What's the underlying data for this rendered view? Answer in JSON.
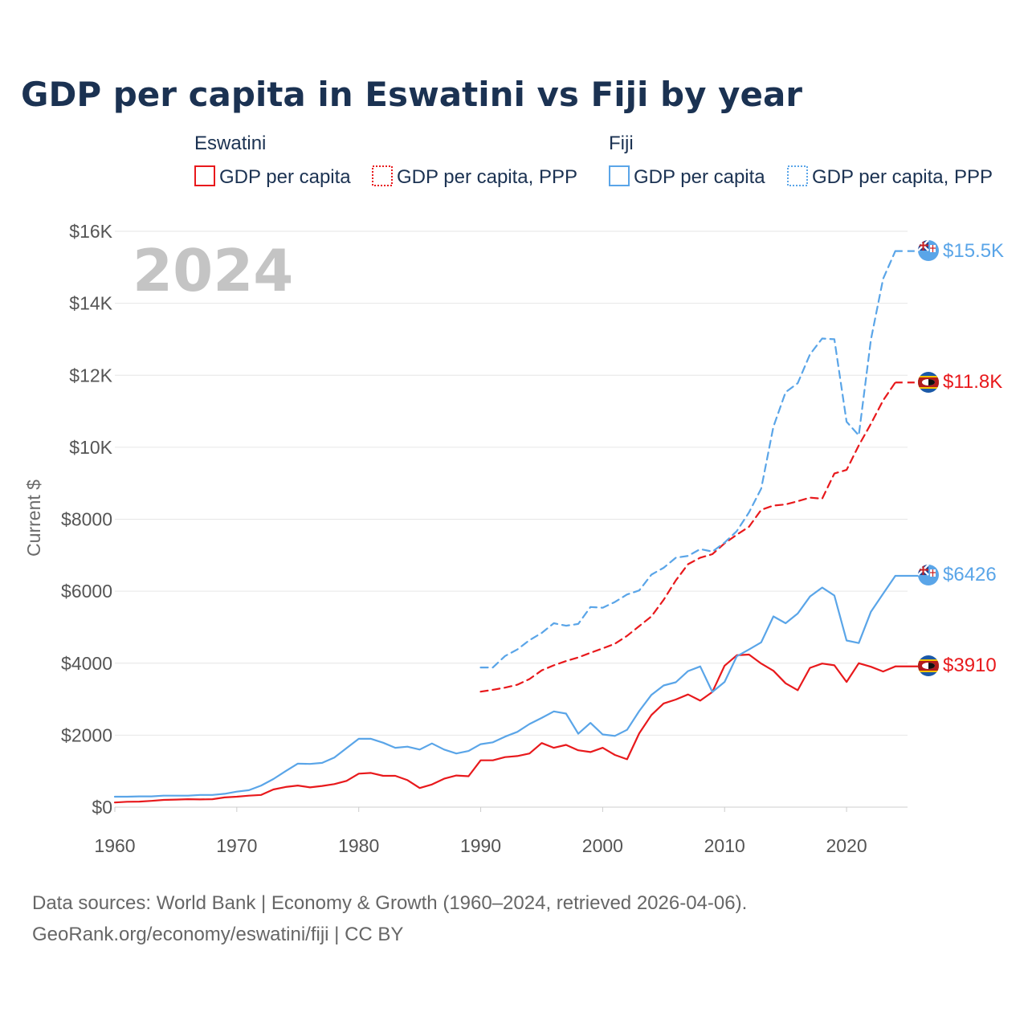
{
  "chart_data": {
    "type": "line",
    "title": "GDP per capita in Eswatini vs Fiji by year",
    "ylabel": "Current $",
    "xlim": [
      1960,
      2025
    ],
    "ylim": [
      0,
      16000
    ],
    "x_ticks": [
      1960,
      1970,
      1980,
      1990,
      2000,
      2010,
      2020
    ],
    "x_tick_labels": [
      "1960",
      "1970",
      "1980",
      "1990",
      "2000",
      "2010",
      "2020"
    ],
    "y_ticks": [
      0,
      2000,
      4000,
      6000,
      8000,
      10000,
      12000,
      14000,
      16000
    ],
    "y_tick_labels": [
      "$0",
      "$2000",
      "$4000",
      "$6000",
      "$8000",
      "$10K",
      "$12K",
      "$14K",
      "$16K"
    ],
    "year_watermark": "2024",
    "legend": {
      "groups": [
        {
          "title": "Eswatini",
          "color": "#e8191c",
          "items": [
            {
              "label": "GDP per capita",
              "style": "solid"
            },
            {
              "label": "GDP per capita, PPP",
              "style": "dotted"
            }
          ]
        },
        {
          "title": "Fiji",
          "color": "#5aa5e8",
          "items": [
            {
              "label": "GDP per capita",
              "style": "solid"
            },
            {
              "label": "GDP per capita, PPP",
              "style": "dotted"
            }
          ]
        }
      ]
    },
    "series": [
      {
        "name": "Eswatini GDP per capita",
        "country": "Eswatini",
        "color": "#e8191c",
        "dash": "solid",
        "end_label": "$3910",
        "x": [
          1960,
          1961,
          1962,
          1963,
          1964,
          1965,
          1966,
          1967,
          1968,
          1969,
          1970,
          1971,
          1972,
          1973,
          1974,
          1975,
          1976,
          1977,
          1978,
          1979,
          1980,
          1981,
          1982,
          1983,
          1984,
          1985,
          1986,
          1987,
          1988,
          1989,
          1990,
          1991,
          1992,
          1993,
          1994,
          1995,
          1996,
          1997,
          1998,
          1999,
          2000,
          2001,
          2002,
          2003,
          2004,
          2005,
          2006,
          2007,
          2008,
          2009,
          2010,
          2011,
          2012,
          2013,
          2014,
          2015,
          2016,
          2017,
          2018,
          2019,
          2020,
          2021,
          2022,
          2023,
          2024
        ],
        "values": [
          130,
          150,
          155,
          175,
          200,
          210,
          220,
          215,
          220,
          270,
          290,
          320,
          340,
          490,
          560,
          600,
          550,
          590,
          640,
          730,
          930,
          950,
          870,
          870,
          750,
          530,
          630,
          790,
          880,
          860,
          1300,
          1300,
          1390,
          1420,
          1490,
          1780,
          1650,
          1730,
          1580,
          1530,
          1650,
          1450,
          1330,
          2050,
          2560,
          2880,
          2990,
          3130,
          2960,
          3200,
          3930,
          4220,
          4240,
          3990,
          3790,
          3440,
          3250,
          3870,
          3990,
          3940,
          3480,
          4000,
          3900,
          3770,
          3910
        ]
      },
      {
        "name": "Eswatini GDP per capita, PPP",
        "country": "Eswatini",
        "color": "#e8191c",
        "dash": "dashed",
        "end_label": "$11.8K",
        "x": [
          1990,
          1991,
          1992,
          1993,
          1994,
          1995,
          1996,
          1997,
          1998,
          1999,
          2000,
          2001,
          2002,
          2003,
          2004,
          2005,
          2006,
          2007,
          2008,
          2009,
          2010,
          2011,
          2012,
          2013,
          2014,
          2015,
          2016,
          2017,
          2018,
          2019,
          2020,
          2021,
          2022,
          2023,
          2024
        ],
        "values": [
          3210,
          3260,
          3320,
          3400,
          3560,
          3800,
          3940,
          4060,
          4160,
          4290,
          4410,
          4540,
          4760,
          5030,
          5300,
          5760,
          6300,
          6750,
          6930,
          7030,
          7330,
          7570,
          7790,
          8260,
          8380,
          8410,
          8500,
          8600,
          8570,
          9270,
          9370,
          10050,
          10650,
          11300,
          11800
        ]
      },
      {
        "name": "Fiji GDP per capita",
        "country": "Fiji",
        "color": "#5aa5e8",
        "dash": "solid",
        "end_label": "$6426",
        "x": [
          1960,
          1961,
          1962,
          1963,
          1964,
          1965,
          1966,
          1967,
          1968,
          1969,
          1970,
          1971,
          1972,
          1973,
          1974,
          1975,
          1976,
          1977,
          1978,
          1979,
          1980,
          1981,
          1982,
          1983,
          1984,
          1985,
          1986,
          1987,
          1988,
          1989,
          1990,
          1991,
          1992,
          1993,
          1994,
          1995,
          1996,
          1997,
          1998,
          1999,
          2000,
          2001,
          2002,
          2003,
          2004,
          2005,
          2006,
          2007,
          2008,
          2009,
          2010,
          2011,
          2012,
          2013,
          2014,
          2015,
          2016,
          2017,
          2018,
          2019,
          2020,
          2021,
          2022,
          2023,
          2024
        ],
        "values": [
          290,
          290,
          300,
          300,
          320,
          320,
          320,
          340,
          340,
          370,
          430,
          470,
          600,
          780,
          1000,
          1210,
          1200,
          1230,
          1380,
          1640,
          1900,
          1900,
          1790,
          1650,
          1680,
          1600,
          1770,
          1600,
          1490,
          1560,
          1750,
          1800,
          1960,
          2090,
          2310,
          2480,
          2660,
          2600,
          2040,
          2340,
          2020,
          1980,
          2150,
          2670,
          3120,
          3380,
          3470,
          3780,
          3910,
          3200,
          3480,
          4190,
          4380,
          4580,
          5300,
          5110,
          5380,
          5850,
          6100,
          5880,
          4630,
          4560,
          5430,
          5930,
          6426
        ]
      },
      {
        "name": "Fiji GDP per capita, PPP",
        "country": "Fiji",
        "color": "#5aa5e8",
        "dash": "dashed",
        "end_label": "$15.5K",
        "x": [
          1990,
          1991,
          1992,
          1993,
          1994,
          1995,
          1996,
          1997,
          1998,
          1999,
          2000,
          2001,
          2002,
          2003,
          2004,
          2005,
          2006,
          2007,
          2008,
          2009,
          2010,
          2011,
          2012,
          2013,
          2014,
          2015,
          2016,
          2017,
          2018,
          2019,
          2020,
          2021,
          2022,
          2023,
          2024
        ],
        "values": [
          3880,
          3880,
          4200,
          4380,
          4640,
          4840,
          5110,
          5040,
          5090,
          5560,
          5540,
          5700,
          5910,
          6020,
          6460,
          6650,
          6930,
          6980,
          7170,
          7100,
          7350,
          7670,
          8190,
          8850,
          10570,
          11530,
          11780,
          12580,
          13020,
          13000,
          10710,
          10330,
          12990,
          14680,
          15450
        ]
      }
    ]
  },
  "footer": {
    "line1": "Data sources: World Bank | Economy & Growth (1960–2024, retrieved 2026-04-06).",
    "line2": "GeoRank.org/economy/eswatini/fiji | CC BY"
  }
}
